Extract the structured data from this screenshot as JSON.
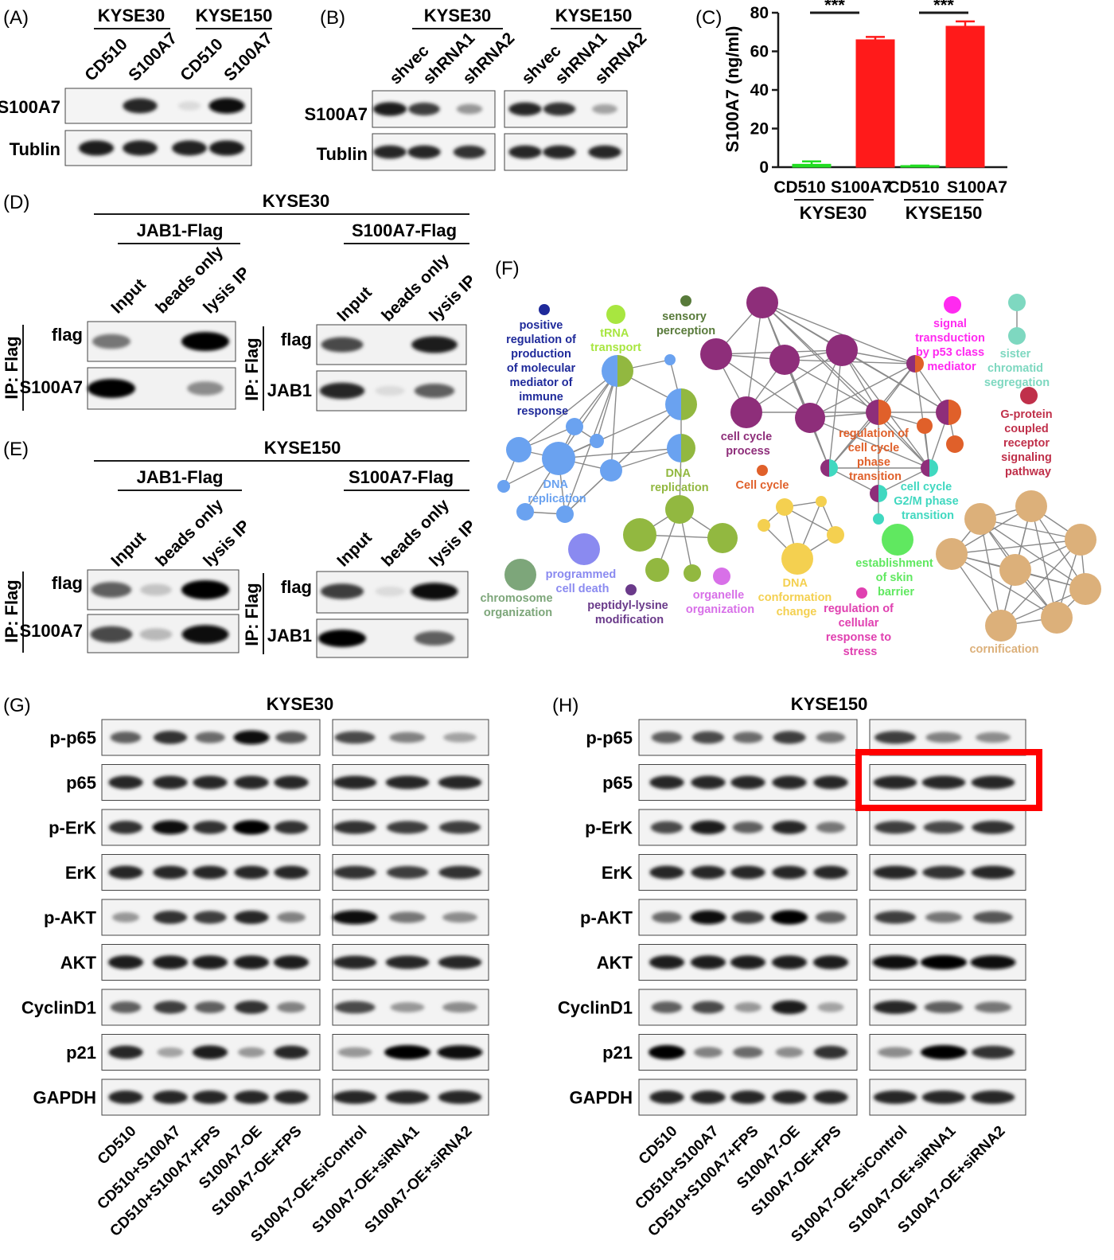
{
  "panels": {
    "A": {
      "tag": "(A)",
      "groups": [
        "KYSE30",
        "KYSE150"
      ],
      "lanes": [
        "CD510",
        "S100A7",
        "CD510",
        "S100A7"
      ],
      "rows": [
        "S100A7",
        "Tublin"
      ],
      "bands": [
        [
          0.03,
          0.85,
          0.05,
          0.95
        ],
        [
          0.9,
          0.88,
          0.88,
          0.9
        ]
      ]
    },
    "B": {
      "tag": "(B)",
      "groups": [
        "KYSE30",
        "KYSE150"
      ],
      "lanes": [
        "shvec",
        "shRNA1",
        "shRNA2"
      ],
      "rows": [
        "S100A7",
        "Tublin"
      ],
      "bands": [
        [
          [
            0.9,
            0.75,
            0.35
          ],
          [
            0.85,
            0.8,
            0.3
          ]
        ],
        [
          [
            0.85,
            0.85,
            0.8
          ],
          [
            0.85,
            0.85,
            0.85
          ]
        ]
      ]
    },
    "C": {
      "tag": "(C)",
      "significance": [
        "***",
        "***"
      ],
      "group_labels": [
        "KYSE30",
        "KYSE150"
      ]
    },
    "D": {
      "tag": "(D)",
      "cell_line": "KYSE30",
      "left": {
        "title": "JAB1-Flag",
        "lanes": [
          "Input",
          "beads only",
          "lysis IP"
        ],
        "rows": [
          "flag",
          "S100A7"
        ],
        "bands": [
          [
            0.5,
            0.02,
            1.0
          ],
          [
            1.0,
            0.02,
            0.4
          ]
        ]
      },
      "right": {
        "title": "S100A7-Flag",
        "lanes": [
          "Input",
          "beads only",
          "lysis IP"
        ],
        "rows": [
          "flag",
          "JAB1"
        ],
        "bands": [
          [
            0.7,
            0.03,
            0.9
          ],
          [
            0.85,
            0.05,
            0.6
          ]
        ]
      },
      "ip_label": "IP: Flag"
    },
    "E": {
      "tag": "(E)",
      "cell_line": "KYSE150",
      "left": {
        "title": "JAB1-Flag",
        "lanes": [
          "Input",
          "beads only",
          "lysis IP"
        ],
        "rows": [
          "flag",
          "S100A7"
        ],
        "bands": [
          [
            0.6,
            0.15,
            1.0
          ],
          [
            0.7,
            0.2,
            0.95
          ]
        ]
      },
      "right": {
        "title": "S100A7-Flag",
        "lanes": [
          "Input",
          "beads only",
          "lysis IP"
        ],
        "rows": [
          "flag",
          "JAB1"
        ],
        "bands": [
          [
            0.75,
            0.05,
            0.95
          ],
          [
            1.0,
            0.03,
            0.6
          ]
        ]
      },
      "ip_label": "IP: Flag"
    },
    "F": {
      "tag": "(F)",
      "network_labels": {
        "positive_regulation": [
          "positive",
          "regulation of",
          "production",
          "of molecular",
          "mediator of",
          "immune",
          "response"
        ],
        "trna_transport": [
          "tRNA",
          "transport"
        ],
        "sensory_perception": [
          "sensory",
          "perception"
        ],
        "signal_transduction": [
          "signal",
          "transduction",
          "by p53 class",
          "mediator"
        ],
        "sister_chromatid": [
          "sister",
          "chromatid",
          "segregation"
        ],
        "g_protein": [
          "G-protein",
          "coupled",
          "receptor",
          "signaling",
          "pathway"
        ],
        "cell_cycle_process": [
          "cell cycle",
          "process"
        ],
        "regulation_cell_cycle": [
          "regulation of",
          "cell cycle",
          "phase",
          "transition"
        ],
        "cell_cycle": "Cell cycle",
        "g2m": [
          "cell cycle",
          "G2/M phase",
          "transition"
        ],
        "dna_replication_blue": [
          "DNA",
          "replication"
        ],
        "dna_replication_green": [
          "DNA",
          "replication"
        ],
        "programmed_cell_death": [
          "programmed",
          "cell death"
        ],
        "chromosome_organization": [
          "chromosome",
          "organization"
        ],
        "peptidyl_lysine": [
          "peptidyl-lysine",
          "modification"
        ],
        "organelle_organization": [
          "organelle",
          "organization"
        ],
        "dna_conformation": [
          "DNA",
          "conformation",
          "change"
        ],
        "regulation_stress": [
          "regulation of",
          "cellular",
          "response to",
          "stress"
        ],
        "skin_barrier": [
          "establishment",
          "of skin",
          "barrier"
        ],
        "cornification": "cornification"
      }
    },
    "G": {
      "tag": "(G)",
      "cell_line": "KYSE30",
      "rows": [
        "p-p65",
        "p65",
        "p-ErK",
        "ErK",
        "p-AKT",
        "AKT",
        "CyclinD1",
        "p21",
        "GAPDH"
      ],
      "bands_left": [
        [
          0.6,
          0.8,
          0.55,
          0.95,
          0.65
        ],
        [
          0.85,
          0.85,
          0.85,
          0.85,
          0.85
        ],
        [
          0.8,
          0.95,
          0.8,
          1.0,
          0.8
        ],
        [
          0.85,
          0.85,
          0.85,
          0.85,
          0.85
        ],
        [
          0.35,
          0.8,
          0.75,
          0.85,
          0.45
        ],
        [
          0.9,
          0.9,
          0.9,
          0.9,
          0.9
        ],
        [
          0.6,
          0.75,
          0.6,
          0.8,
          0.45
        ],
        [
          0.85,
          0.3,
          0.9,
          0.35,
          0.85
        ],
        [
          0.85,
          0.85,
          0.85,
          0.85,
          0.85
        ]
      ],
      "bands_right": [
        [
          0.7,
          0.45,
          0.3
        ],
        [
          0.85,
          0.85,
          0.85
        ],
        [
          0.8,
          0.75,
          0.75
        ],
        [
          0.8,
          0.75,
          0.8
        ],
        [
          0.95,
          0.5,
          0.4
        ],
        [
          0.85,
          0.85,
          0.85
        ],
        [
          0.7,
          0.35,
          0.4
        ],
        [
          0.35,
          1.0,
          0.95
        ],
        [
          0.85,
          0.85,
          0.85
        ]
      ]
    },
    "H": {
      "tag": "(H)",
      "cell_line": "KYSE150",
      "rows": [
        "p-p65",
        "p65",
        "p-ErK",
        "ErK",
        "p-AKT",
        "AKT",
        "CyclinD1",
        "p21",
        "GAPDH"
      ],
      "bands_left": [
        [
          0.6,
          0.7,
          0.55,
          0.75,
          0.5
        ],
        [
          0.85,
          0.85,
          0.85,
          0.85,
          0.85
        ],
        [
          0.7,
          0.9,
          0.6,
          0.85,
          0.5
        ],
        [
          0.85,
          0.85,
          0.85,
          0.85,
          0.85
        ],
        [
          0.55,
          0.95,
          0.75,
          1.0,
          0.6
        ],
        [
          0.9,
          0.9,
          0.9,
          0.9,
          0.9
        ],
        [
          0.6,
          0.7,
          0.35,
          0.9,
          0.3
        ],
        [
          1.0,
          0.45,
          0.55,
          0.4,
          0.8
        ],
        [
          0.85,
          0.85,
          0.85,
          0.85,
          0.85
        ]
      ],
      "bands_right": [
        [
          0.75,
          0.45,
          0.4
        ],
        [
          0.85,
          0.85,
          0.85
        ],
        [
          0.75,
          0.7,
          0.8
        ],
        [
          0.85,
          0.8,
          0.85
        ],
        [
          0.75,
          0.5,
          0.65
        ],
        [
          0.95,
          1.0,
          0.95
        ],
        [
          0.85,
          0.6,
          0.5
        ],
        [
          0.4,
          1.0,
          0.8
        ],
        [
          0.85,
          0.85,
          0.85
        ]
      ]
    }
  },
  "treatment_lanes_left": [
    "CD510",
    "CD510+S100A7",
    "CD510+S100A7+FPS",
    "S100A7-OE",
    "S100A7-OE+FPS"
  ],
  "treatment_lanes_right": [
    "S100A7-OE+siControl",
    "S100A7-OE+siRNA1",
    "S100A7-OE+siRNA2"
  ],
  "colors": {
    "bar_green": "#22dd22",
    "bar_red": "#ff1a1a",
    "highlight_box": "#ff0000"
  },
  "chart_data": {
    "type": "bar",
    "title": "",
    "ylabel": "S100A7 (ng/ml)",
    "xlabel": "",
    "ylim": [
      0,
      80
    ],
    "yticks": [
      0,
      20,
      40,
      60,
      80
    ],
    "categories": [
      "CD510",
      "S100A7",
      "CD510",
      "S100A7"
    ],
    "groups": [
      "KYSE30",
      "KYSE150"
    ],
    "values": [
      1.5,
      66,
      0.5,
      73
    ],
    "errors": [
      1.5,
      1.5,
      0.3,
      2.5
    ],
    "bar_colors": [
      "#22dd22",
      "#ff1a1a",
      "#22dd22",
      "#ff1a1a"
    ]
  }
}
